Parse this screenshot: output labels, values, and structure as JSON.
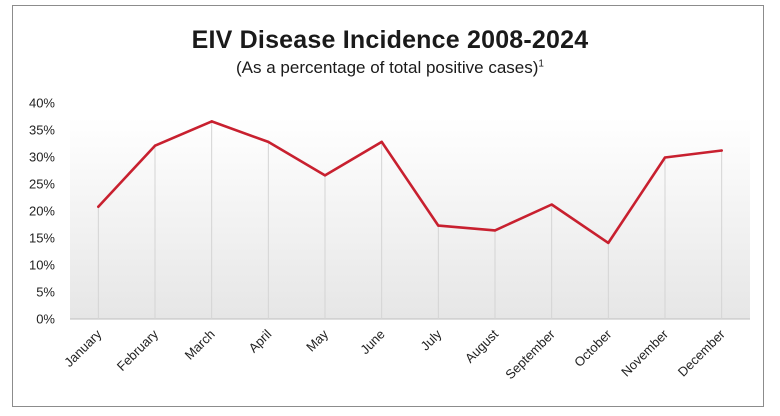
{
  "chart_data": {
    "type": "line",
    "title": "EIV Disease Incidence 2008-2024",
    "subtitle": "(As a percentage of total positive cases)",
    "subtitle_footnote": "1",
    "xlabel": "",
    "ylabel": "",
    "categories": [
      "January",
      "February",
      "March",
      "April",
      "May",
      "June",
      "July",
      "August",
      "September",
      "October",
      "November",
      "December"
    ],
    "series": [
      {
        "values": [
          20.8,
          32.1,
          36.6,
          32.8,
          26.6,
          32.8,
          17.3,
          16.4,
          21.2,
          14.1,
          29.9,
          31.2
        ],
        "color": "#c8202f"
      }
    ],
    "ylim": [
      0,
      40
    ],
    "yticks": [
      {
        "value": 0,
        "label": "0%"
      },
      {
        "value": 5,
        "label": "5%"
      },
      {
        "value": 10,
        "label": "10%"
      },
      {
        "value": 15,
        "label": "15%"
      },
      {
        "value": 20,
        "label": "20%"
      },
      {
        "value": 25,
        "label": "25%"
      },
      {
        "value": 30,
        "label": "30%"
      },
      {
        "value": 35,
        "label": "35%"
      },
      {
        "value": 40,
        "label": "40%"
      }
    ],
    "grid": "vertical",
    "legend": "none"
  }
}
